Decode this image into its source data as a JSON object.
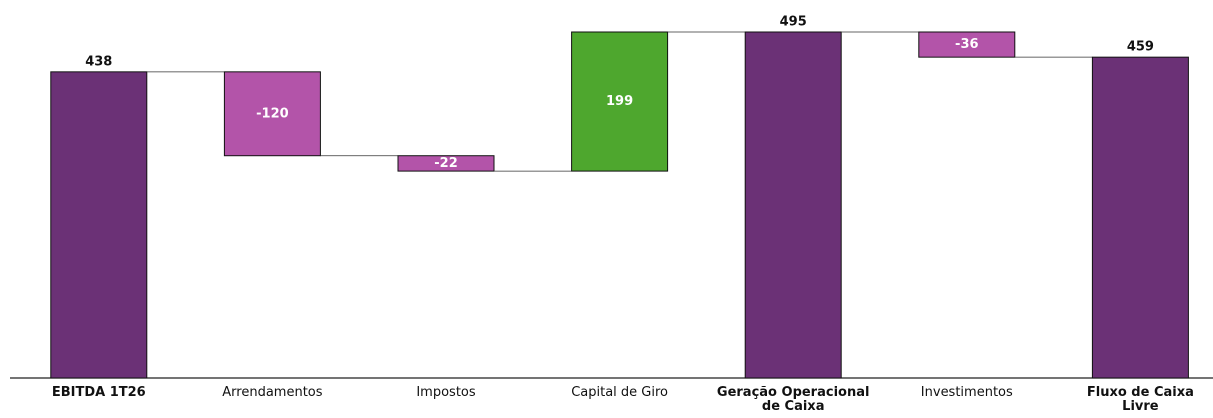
{
  "chart_data": {
    "type": "waterfall",
    "categories": [
      "EBITDA 1T26",
      "Arrendamentos",
      "Impostos",
      "Capital de Giro",
      "Geração Operacional de Caixa",
      "Investimentos",
      "Fluxo de Caixa Livre"
    ],
    "values": [
      438,
      -120,
      -22,
      199,
      495,
      -36,
      459
    ],
    "measure": [
      "total",
      "relative",
      "relative",
      "relative",
      "total",
      "relative",
      "total"
    ],
    "colors": [
      "#6b3176",
      "#b354a9",
      "#b354a9",
      "#4ea72e",
      "#6b3176",
      "#b354a9",
      "#6b3176"
    ]
  }
}
